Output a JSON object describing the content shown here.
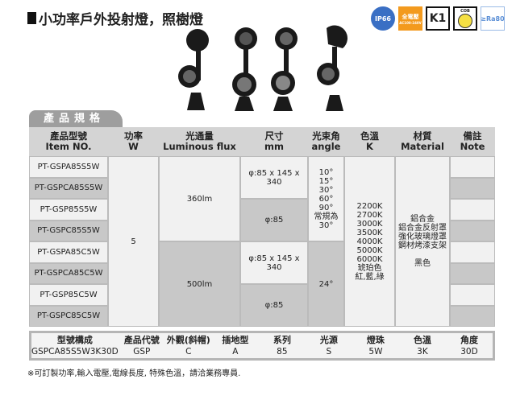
{
  "title": "小功率戶外投射燈，照樹燈",
  "badges": [
    {
      "icon": "ip66-icon",
      "label": "IP66"
    },
    {
      "icon": "full-voltage-icon",
      "label": "全電壓",
      "sub": "AC100-240V"
    },
    {
      "icon": "k1-icon",
      "label": "K1"
    },
    {
      "icon": "cob-icon",
      "label": "COB"
    },
    {
      "icon": "ra80-icon",
      "label": "≥Ra80"
    }
  ],
  "colors": {
    "header_gray": "#d4d4d4",
    "tab_gray": "#9e9e9e",
    "badge_orange": "#f39a1e",
    "badge_yellow": "#f5e043",
    "badge_blue": "#5b8fd6"
  },
  "section_tab": "產品規格",
  "spec_table": {
    "headers": [
      [
        "產品型號",
        "Item NO."
      ],
      [
        "功率",
        "W"
      ],
      [
        "光通量",
        "Luminous flux"
      ],
      [
        "尺寸",
        "mm"
      ],
      [
        "光束角",
        "angle"
      ],
      [
        "色溫",
        "K"
      ],
      [
        "材質",
        "Material"
      ],
      [
        "備註",
        "Note"
      ]
    ],
    "models": [
      "PT-GSPA85S5W",
      "PT-GSPCA85S5W",
      "PT-GSP85S5W",
      "PT-GSPC85S5W",
      "PT-GSPA85C5W",
      "PT-GSPCA85C5W",
      "PT-GSP85C5W",
      "PT-GSPC85C5W"
    ],
    "power": "5",
    "flux": [
      "360lm",
      "500lm"
    ],
    "sizes": [
      "φ:85 x 145 x 340",
      "φ:85",
      "φ:85 x 145 x 340",
      "φ:85"
    ],
    "angles_top": [
      "10°",
      "15°",
      "30°",
      "60°",
      "90°",
      "常規為30°"
    ],
    "angle_bottom": "24°",
    "color_temps": [
      "2200K",
      "2700K",
      "3000K",
      "3500K",
      "4000K",
      "5000K",
      "6000K",
      "琥珀色",
      "紅,藍,綠"
    ],
    "material": [
      "鋁合金",
      "鋁合金反射罩",
      "強化玻璃燈罩",
      "鋼材烤漆支架",
      "",
      "黑色"
    ]
  },
  "model_code": {
    "headers": [
      "型號構成",
      "產品代號",
      "外觀(斜帽)",
      "插地型",
      "系列",
      "光源",
      "燈珠",
      "色溫",
      "角度"
    ],
    "values": [
      "GSPCA85S5W3K30D",
      "GSP",
      "C",
      "A",
      "85",
      "S",
      "5W",
      "3K",
      "30D"
    ]
  },
  "footnote": "※可訂製功率,輸入電壓,電線長度, 特殊色溫，請洽業務專員."
}
